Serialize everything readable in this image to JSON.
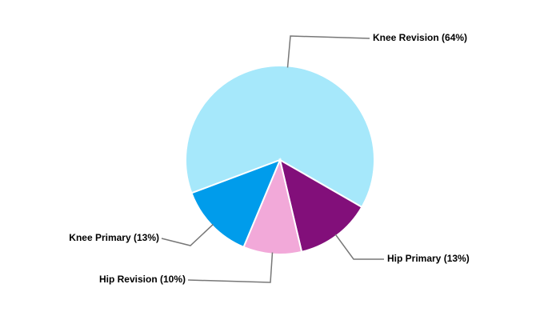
{
  "chart_data": {
    "type": "pie",
    "values": [
      64,
      13,
      10,
      13
    ],
    "value_labels": [
      "Knee Revision (64%)",
      "Hip Primary (13%)",
      "Hip Revision (10%)",
      "Knee Primary (13%)"
    ],
    "colors": [
      "#a6e8fb",
      "#820f7a",
      "#f2a9d9",
      "#009ceb"
    ]
  }
}
